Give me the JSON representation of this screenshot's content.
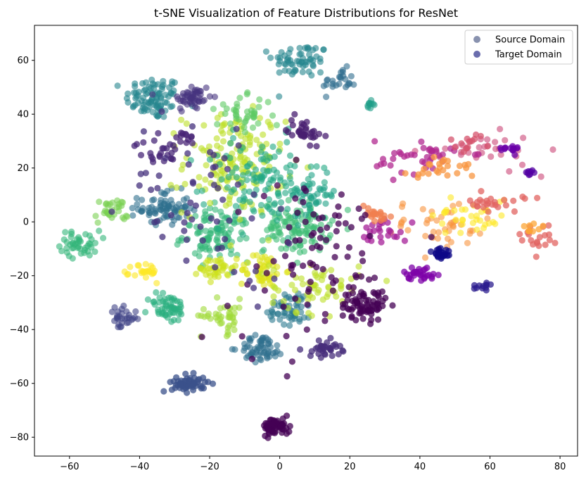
{
  "chart_data": {
    "type": "scatter",
    "title": "t-SNE Visualization of Feature Distributions for ResNet",
    "xlabel": "",
    "ylabel": "",
    "xlim": [
      -70,
      85
    ],
    "ylim": [
      -87,
      73
    ],
    "xticks": [
      -60,
      -40,
      -20,
      0,
      20,
      40,
      60,
      80
    ],
    "yticks": [
      -80,
      -60,
      -40,
      -20,
      0,
      20,
      40,
      60
    ],
    "grid": false,
    "legend_position": "top-right",
    "colormap": "viridis / plasma per-class",
    "legend": [
      {
        "label": "Source Domain",
        "color": "#3b4a7a",
        "alpha": 0.6
      },
      {
        "label": "Target Domain",
        "color": "#2b2f8a",
        "alpha": 0.7
      }
    ],
    "series": [
      {
        "name": "Source Domain",
        "clusters": [
          {
            "color": "#25858e",
            "center": [
              -36,
              46
            ],
            "spread": [
              5,
              5
            ],
            "count": 90
          },
          {
            "color": "#46337e",
            "center": [
              -25,
              46
            ],
            "spread": [
              3.5,
              3.5
            ],
            "count": 50
          },
          {
            "color": "#25858e",
            "center": [
              6,
              60
            ],
            "spread": [
              5,
              4
            ],
            "count": 60
          },
          {
            "color": "#2f6c8e",
            "center": [
              17,
              52
            ],
            "spread": [
              3,
              3
            ],
            "count": 25
          },
          {
            "color": "#2e6f8e",
            "center": [
              -33,
              5
            ],
            "spread": [
              4.5,
              4
            ],
            "count": 80
          },
          {
            "color": "#34b679",
            "center": [
              -57,
              -8
            ],
            "spread": [
              3.5,
              3
            ],
            "count": 45
          },
          {
            "color": "#7ad151",
            "center": [
              -48,
              4
            ],
            "spread": [
              3,
              3
            ],
            "count": 30
          },
          {
            "color": "#35b779",
            "center": [
              -18,
              -5
            ],
            "spread": [
              6,
              6
            ],
            "count": 110
          },
          {
            "color": "#3dbc74",
            "center": [
              5,
              -2
            ],
            "spread": [
              6,
              6
            ],
            "count": 110
          },
          {
            "color": "#bddf26",
            "center": [
              -13,
              22
            ],
            "spread": [
              9,
              12
            ],
            "count": 160
          },
          {
            "color": "#22a884",
            "center": [
              -5,
              15
            ],
            "spread": [
              10,
              10
            ],
            "count": 120
          },
          {
            "color": "#cde11d",
            "center": [
              -18,
              -17
            ],
            "spread": [
              3,
              3
            ],
            "count": 40
          },
          {
            "color": "#dde318",
            "center": [
              -5,
              -18
            ],
            "spread": [
              4,
              4
            ],
            "count": 50
          },
          {
            "color": "#fde725",
            "center": [
              -38,
              -19
            ],
            "spread": [
              2.5,
              2.5
            ],
            "count": 25
          },
          {
            "color": "#29af7f",
            "center": [
              -32,
              -32
            ],
            "spread": [
              3.5,
              3.5
            ],
            "count": 55
          },
          {
            "color": "#2e6f8e",
            "center": [
              -5,
              -47
            ],
            "spread": [
              4,
              3
            ],
            "count": 60
          },
          {
            "color": "#2a788e",
            "center": [
              3,
              -32
            ],
            "spread": [
              4,
              4
            ],
            "count": 55
          },
          {
            "color": "#a0da39",
            "center": [
              -16,
              -35
            ],
            "spread": [
              4,
              4
            ],
            "count": 40
          },
          {
            "color": "#bddf26",
            "center": [
              10,
              -24
            ],
            "spread": [
              8,
              6
            ],
            "count": 60
          },
          {
            "color": "#1fa187",
            "center": [
              10,
              10
            ],
            "spread": [
              4,
              4
            ],
            "count": 40
          },
          {
            "color": "#1f9e89",
            "center": [
              26,
              44
            ],
            "spread": [
              1.2,
              1
            ],
            "count": 10
          },
          {
            "color": "#414487",
            "center": [
              -45,
              -36
            ],
            "spread": [
              2.5,
              2.5
            ],
            "count": 30
          },
          {
            "color": "#5ec962",
            "center": [
              -10,
              40
            ],
            "spread": [
              5,
              4
            ],
            "count": 40
          },
          {
            "color": "#f89540",
            "center": [
              45,
              -2
            ],
            "spread": [
              10,
              6
            ],
            "count": 45
          },
          {
            "color": "#fde725",
            "center": [
              55,
              3
            ],
            "spread": [
              7,
              5
            ],
            "count": 35
          },
          {
            "color": "#cc4778",
            "center": [
              58,
              26
            ],
            "spread": [
              10,
              4
            ],
            "count": 30
          }
        ]
      },
      {
        "name": "Target Domain",
        "clusters": [
          {
            "color": "#3b528b",
            "center": [
              -26,
              -60
            ],
            "spread": [
              3,
              2
            ],
            "count": 60
          },
          {
            "color": "#440154",
            "center": [
              -1,
              -76
            ],
            "spread": [
              2.5,
              2
            ],
            "count": 60
          },
          {
            "color": "#440154",
            "center": [
              24,
              -31
            ],
            "spread": [
              4,
              3.5
            ],
            "count": 70
          },
          {
            "color": "#472d7b",
            "center": [
              13,
              -47
            ],
            "spread": [
              3,
              2
            ],
            "count": 35
          },
          {
            "color": "#481f70",
            "center": [
              7,
              34
            ],
            "spread": [
              3,
              3
            ],
            "count": 35
          },
          {
            "color": "#482475",
            "center": [
              -27,
              31
            ],
            "spread": [
              1.5,
              1.5
            ],
            "count": 12
          },
          {
            "color": "#482878",
            "center": [
              -35,
              26
            ],
            "spread": [
              4,
              3
            ],
            "count": 25
          },
          {
            "color": "#7e03a8",
            "center": [
              40,
              -19
            ],
            "spread": [
              3,
              1.5
            ],
            "count": 30
          },
          {
            "color": "#0d0887",
            "center": [
              46,
              -12
            ],
            "spread": [
              1.8,
              1.8
            ],
            "count": 25
          },
          {
            "color": "#2c1d8f",
            "center": [
              58,
              -24
            ],
            "spread": [
              2.5,
              1.5
            ],
            "count": 12
          },
          {
            "color": "#6a00a8",
            "center": [
              65,
              27
            ],
            "spread": [
              2,
              1
            ],
            "count": 15
          },
          {
            "color": "#5302a3",
            "center": [
              72,
              18
            ],
            "spread": [
              1,
              1
            ],
            "count": 8
          },
          {
            "color": "#b12a90",
            "center": [
              40,
              24
            ],
            "spread": [
              8,
              4
            ],
            "count": 40
          },
          {
            "color": "#e16462",
            "center": [
              62,
              7
            ],
            "spread": [
              5,
              2
            ],
            "count": 25
          },
          {
            "color": "#f89540",
            "center": [
              47,
              20
            ],
            "spread": [
              6,
              3
            ],
            "count": 25
          },
          {
            "color": "#e16462",
            "center": [
              73,
              -6
            ],
            "spread": [
              3,
              3
            ],
            "count": 20
          },
          {
            "color": "#fca636",
            "center": [
              72,
              -2
            ],
            "spread": [
              2,
              2
            ],
            "count": 8
          },
          {
            "color": "#d5546e",
            "center": [
              55,
              30
            ],
            "spread": [
              4,
              2
            ],
            "count": 15
          },
          {
            "color": "#a62098",
            "center": [
              30,
              -3
            ],
            "spread": [
              4,
              3
            ],
            "count": 25
          },
          {
            "color": "#f07f4f",
            "center": [
              27,
              3
            ],
            "spread": [
              3,
              2
            ],
            "count": 20
          },
          {
            "color": "#440154",
            "center": [
              10,
              -15
            ],
            "spread": [
              15,
              20
            ],
            "count": 90
          },
          {
            "color": "#46327e",
            "center": [
              -20,
              10
            ],
            "spread": [
              15,
              20
            ],
            "count": 60
          }
        ]
      }
    ]
  }
}
